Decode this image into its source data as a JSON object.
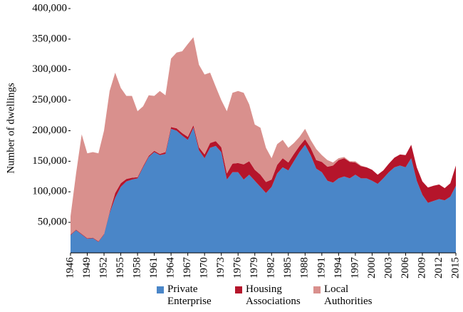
{
  "chart_data": {
    "type": "stacked_area",
    "y_label": "Number of dwellings",
    "x": [
      1946,
      1947,
      1948,
      1949,
      1950,
      1951,
      1952,
      1953,
      1954,
      1955,
      1956,
      1957,
      1958,
      1959,
      1960,
      1961,
      1962,
      1963,
      1964,
      1965,
      1966,
      1967,
      1968,
      1969,
      1970,
      1971,
      1972,
      1973,
      1974,
      1975,
      1976,
      1977,
      1978,
      1979,
      1980,
      1981,
      1982,
      1983,
      1984,
      1985,
      1986,
      1987,
      1988,
      1989,
      1990,
      1991,
      1992,
      1993,
      1994,
      1995,
      1996,
      1997,
      1998,
      1999,
      2000,
      2001,
      2002,
      2003,
      2004,
      2005,
      2006,
      2007,
      2008,
      2009,
      2010,
      2011,
      2012,
      2013,
      2014,
      2015
    ],
    "xlim": [
      1946,
      2015
    ],
    "xticks": [
      1946,
      1949,
      1952,
      1955,
      1958,
      1961,
      1964,
      1967,
      1970,
      1973,
      1976,
      1979,
      1982,
      1985,
      1988,
      1991,
      1994,
      1997,
      2000,
      2003,
      2006,
      2009,
      2012,
      2015
    ],
    "ylim": [
      0,
      400000
    ],
    "yticks": [
      {
        "value": 50000,
        "label": "50,000"
      },
      {
        "value": 100000,
        "label": "100,000"
      },
      {
        "value": 150000,
        "label": "150,000"
      },
      {
        "value": 200000,
        "label": "200,000"
      },
      {
        "value": 250000,
        "label": "250,000"
      },
      {
        "value": 300000,
        "label": "300,000"
      },
      {
        "value": 350000,
        "label": "350,000"
      },
      {
        "value": 400000,
        "label": "400,000"
      }
    ],
    "series": [
      {
        "name": "Private Enterprise",
        "color": "#4a86c8",
        "values": [
          29000,
          37000,
          30000,
          23000,
          24000,
          18000,
          30000,
          65000,
          90000,
          108000,
          117000,
          120000,
          122000,
          140000,
          157000,
          165000,
          160000,
          162000,
          203000,
          200000,
          192000,
          185000,
          205000,
          168000,
          155000,
          172000,
          175000,
          165000,
          120000,
          132000,
          132000,
          120000,
          128000,
          118000,
          108000,
          98000,
          108000,
          130000,
          140000,
          135000,
          150000,
          165000,
          177000,
          160000,
          138000,
          132000,
          118000,
          115000,
          122000,
          125000,
          122000,
          128000,
          122000,
          122000,
          118000,
          113000,
          122000,
          132000,
          140000,
          143000,
          140000,
          155000,
          118000,
          95000,
          82000,
          85000,
          88000,
          86000,
          92000,
          110000
        ]
      },
      {
        "name": "Housing Associations",
        "color": "#b5152b",
        "values": [
          1000,
          1000,
          1000,
          1000,
          1000,
          1000,
          1000,
          2000,
          8000,
          6000,
          4000,
          3000,
          2000,
          2000,
          2000,
          2000,
          2000,
          3000,
          3000,
          4000,
          4000,
          5000,
          4000,
          5000,
          6000,
          8000,
          8000,
          8000,
          10000,
          14000,
          15000,
          25000,
          22000,
          18000,
          20000,
          18000,
          12000,
          14000,
          15000,
          13000,
          12000,
          10000,
          9000,
          12000,
          14000,
          17000,
          23000,
          28000,
          30000,
          30000,
          27000,
          20000,
          20000,
          18000,
          18000,
          15000,
          13000,
          14000,
          16000,
          18000,
          20000,
          22000,
          22000,
          22000,
          25000,
          25000,
          24000,
          20000,
          22000,
          33000
        ]
      },
      {
        "name": "Local Authorities",
        "color": "#d9908d",
        "values": [
          30000,
          92000,
          163000,
          139000,
          140000,
          144000,
          169000,
          198000,
          197000,
          156000,
          136000,
          134000,
          108000,
          98000,
          99000,
          90000,
          103000,
          93000,
          112000,
          124000,
          134000,
          152000,
          144000,
          135000,
          131000,
          115000,
          89000,
          77000,
          102000,
          116000,
          118000,
          117000,
          93000,
          74000,
          77000,
          56000,
          35000,
          34000,
          30000,
          24000,
          18000,
          15000,
          17000,
          13000,
          18000,
          11000,
          11000,
          5000,
          3000,
          2000,
          1000,
          2000,
          1000,
          0,
          0,
          0,
          0,
          0,
          0,
          0,
          0,
          0,
          0,
          0,
          0,
          0,
          0,
          0,
          0,
          0
        ]
      }
    ]
  }
}
